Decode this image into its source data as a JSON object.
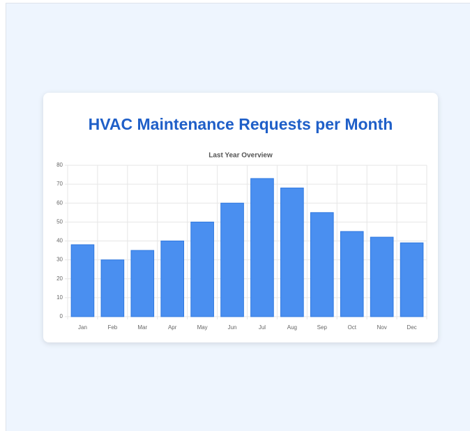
{
  "chart_data": {
    "type": "bar",
    "title": "HVAC Maintenance Requests per Month",
    "subtitle": "Last Year Overview",
    "categories": [
      "Jan",
      "Feb",
      "Mar",
      "Apr",
      "May",
      "Jun",
      "Jul",
      "Aug",
      "Sep",
      "Oct",
      "Nov",
      "Dec"
    ],
    "values": [
      38,
      30,
      35,
      40,
      50,
      60,
      73,
      68,
      55,
      45,
      42,
      39
    ],
    "color": "#4a8ff0",
    "border_color": "#2f78e0",
    "ylim": [
      0,
      80
    ],
    "yticks": [
      0,
      10,
      20,
      30,
      40,
      50,
      60,
      70,
      80
    ],
    "grid": true
  }
}
